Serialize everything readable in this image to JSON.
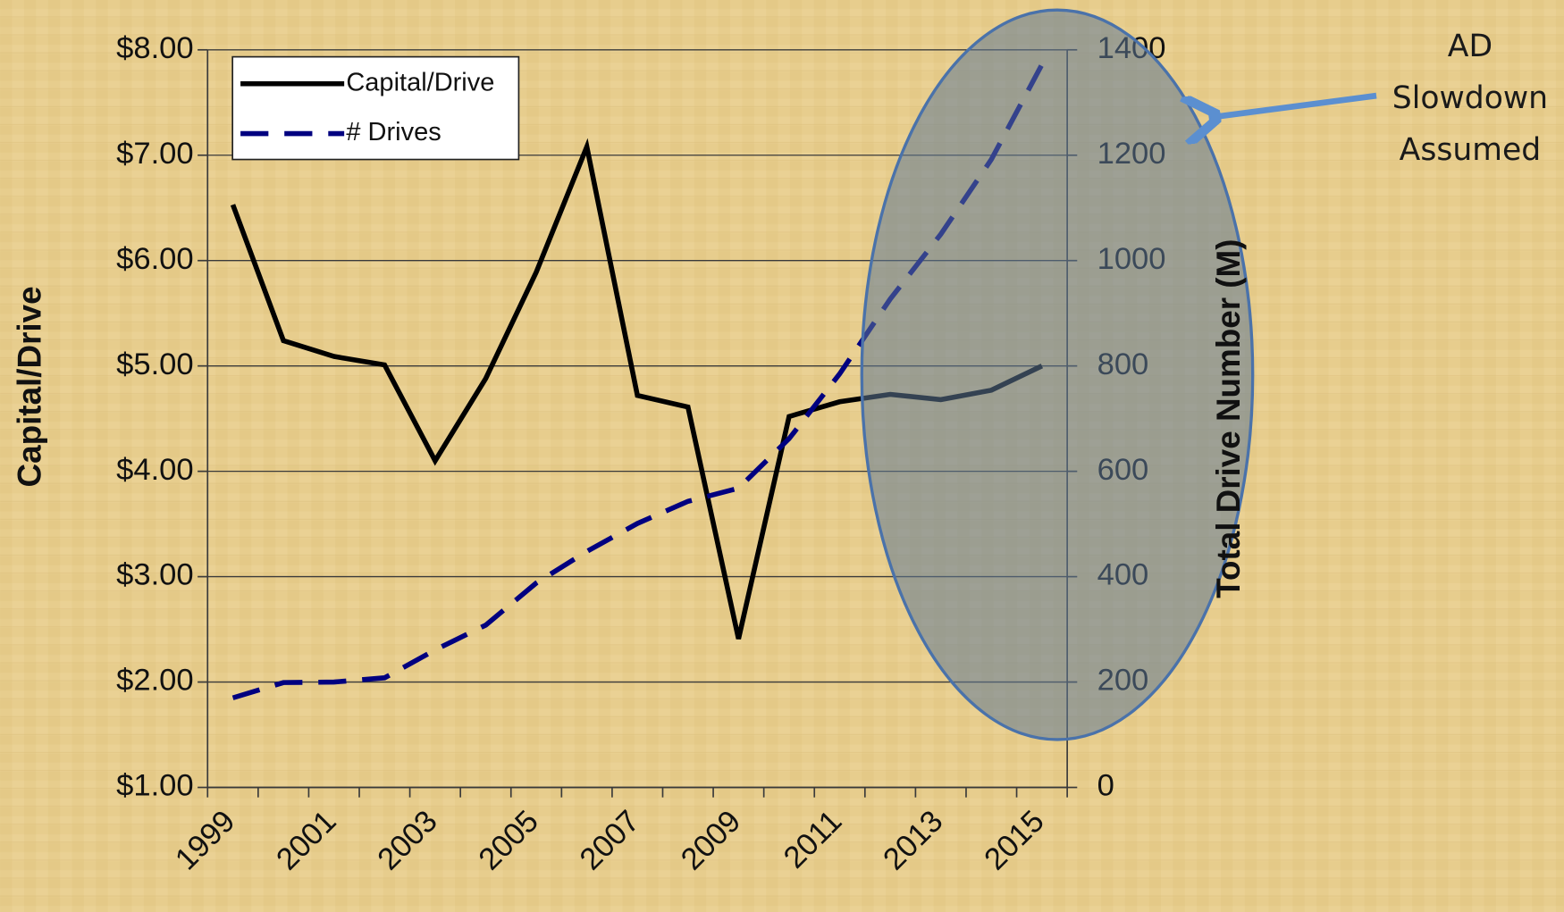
{
  "chart_data": {
    "type": "line",
    "ylabel": "Capital/Drive",
    "y2label": "Total Drive Number (M)",
    "annotation": [
      "AD",
      "Slowdown",
      "Assumed"
    ],
    "categories": [
      "1999",
      null,
      "2001",
      null,
      "2003",
      null,
      "2005",
      null,
      "2007",
      null,
      "2009",
      null,
      "2011",
      null,
      "2013",
      null,
      "2015"
    ],
    "series": [
      {
        "name": "Capital/Drive",
        "color": "#000000",
        "dashed": false,
        "values": [
          6.53,
          5.24,
          5.09,
          5.01,
          4.1,
          4.88,
          5.89,
          7.08,
          4.72,
          4.61,
          2.41,
          4.52,
          4.66,
          4.73,
          4.68,
          4.77,
          5.0
        ]
      },
      {
        "name": "# Drives",
        "color": "#000080",
        "dashed": true,
        "axis": "y2",
        "values": [
          170,
          199,
          200,
          208,
          261,
          308,
          388,
          448,
          501,
          543,
          568,
          662,
          785,
          927,
          1050,
          1192,
          1372
        ]
      }
    ],
    "ylim": [
      1,
      8
    ],
    "yticks": [
      {
        "value": 1,
        "label": "$1.00"
      },
      {
        "value": 2,
        "label": "$2.00"
      },
      {
        "value": 3,
        "label": "$3.00"
      },
      {
        "value": 4,
        "label": "$4.00"
      },
      {
        "value": 5,
        "label": "$5.00"
      },
      {
        "value": 6,
        "label": "$6.00"
      },
      {
        "value": 7,
        "label": "$7.00"
      },
      {
        "value": 8,
        "label": "$8.00"
      }
    ],
    "y2lim": [
      0,
      1400
    ],
    "y2ticks": [
      0,
      200,
      400,
      600,
      800,
      1000,
      1200,
      1400
    ],
    "grid": true,
    "legend": "upper left"
  }
}
